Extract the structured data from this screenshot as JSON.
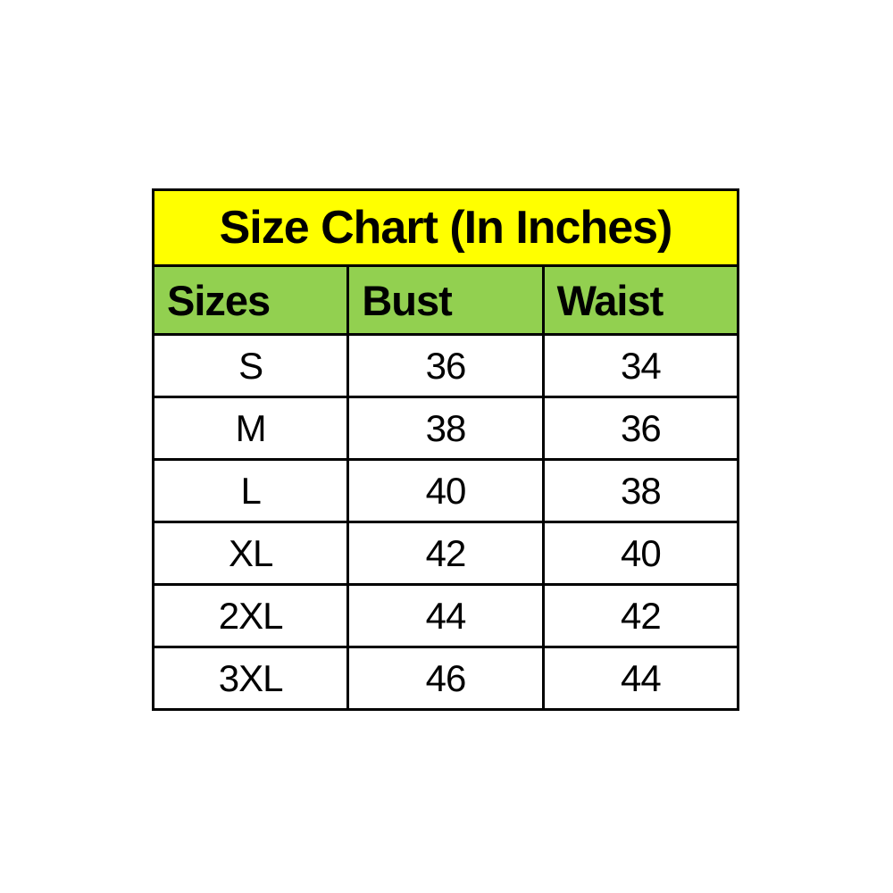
{
  "chart_data": {
    "type": "table",
    "title": "Size Chart (In Inches)",
    "units": "inches",
    "columns": [
      "Sizes",
      "Bust",
      "Waist"
    ],
    "rows": [
      [
        "S",
        "36",
        "34"
      ],
      [
        "M",
        "38",
        "36"
      ],
      [
        "L",
        "40",
        "38"
      ],
      [
        "XL",
        "42",
        "40"
      ],
      [
        "2XL",
        "44",
        "42"
      ],
      [
        "3XL",
        "46",
        "44"
      ]
    ],
    "layout": {
      "title_background": "#ffff00",
      "header_background": "#92d050",
      "cell_background": "#ffffff",
      "border_color": "#000000",
      "text_color": "#000000",
      "page_background": "#ffffff",
      "header_alignment": "left",
      "data_alignment": "center",
      "grid": "on",
      "legend": "none"
    }
  }
}
